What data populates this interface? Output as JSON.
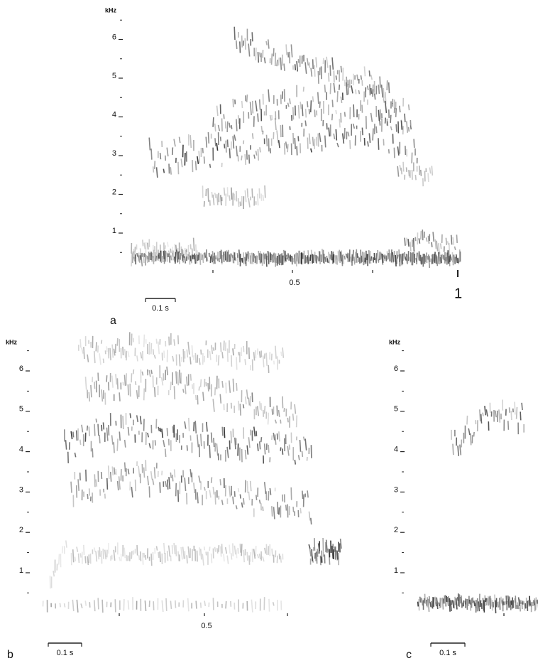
{
  "figure_number": "1",
  "panels": [
    {
      "label": "a",
      "y_unit": "kHz",
      "y_ticks": [
        "1",
        "2",
        "3",
        "4",
        "5",
        "6"
      ],
      "x_ticks": [
        "0.5"
      ],
      "scale_bar": "0.1 s"
    },
    {
      "label": "b",
      "y_unit": "kHz",
      "y_ticks": [
        "1",
        "2",
        "3",
        "4",
        "5",
        "6"
      ],
      "x_ticks": [
        "0.5"
      ],
      "scale_bar": "0.1 s"
    },
    {
      "label": "c",
      "y_unit": "kHz",
      "y_ticks": [
        "1",
        "2",
        "3",
        "4",
        "5",
        "6"
      ],
      "scale_bar": "0.1 s"
    }
  ]
}
